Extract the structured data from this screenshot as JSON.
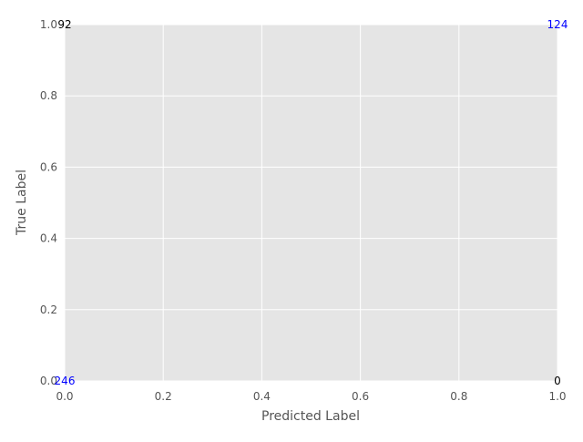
{
  "chart_data": {
    "type": "heatmap",
    "title": "",
    "xlabel": "Predicted Label",
    "ylabel": "True Label",
    "xlim": [
      0,
      1
    ],
    "ylim": [
      0,
      1
    ],
    "x_ticks": [
      "0.0",
      "0.2",
      "0.4",
      "0.6",
      "0.8",
      "1.0"
    ],
    "y_ticks": [
      "0.0",
      "0.2",
      "0.4",
      "0.6",
      "0.8",
      "1.0"
    ],
    "x_tick_values": [
      0,
      0.2,
      0.4,
      0.6,
      0.8,
      1.0
    ],
    "y_tick_values": [
      0,
      0.2,
      0.4,
      0.6,
      0.8,
      1.0
    ],
    "grid": true,
    "cell_annotations": [
      {
        "x": 0,
        "y": 1,
        "text": "92",
        "color": "#000000"
      },
      {
        "x": 1,
        "y": 1,
        "text": "124",
        "color": "#0000ff"
      },
      {
        "x": 0,
        "y": 0,
        "text": "246",
        "color": "#0000ff"
      },
      {
        "x": 1,
        "y": 0,
        "text": "0",
        "color": "#000000"
      }
    ],
    "colors": {
      "plot_background": "#e5e5e5",
      "grid": "#ffffff",
      "tick_label": "#555555",
      "axis_label": "#555555"
    }
  }
}
